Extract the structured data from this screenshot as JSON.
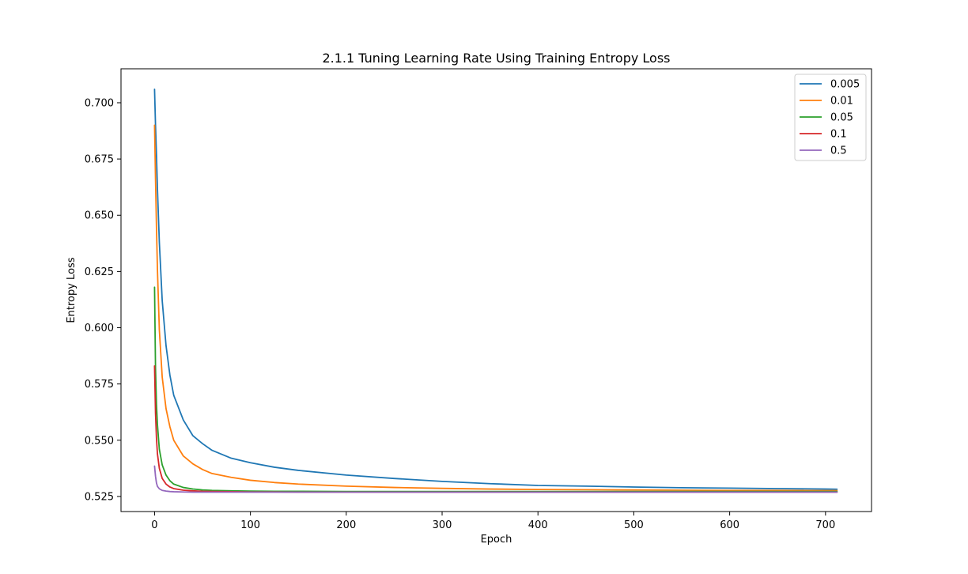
{
  "chart_data": {
    "type": "line",
    "title": "2.1.1 Tuning Learning Rate Using Training Entropy Loss",
    "xlabel": "Epoch",
    "ylabel": "Entropy Loss",
    "xlim": [
      -35,
      748
    ],
    "ylim": [
      0.5183,
      0.7151
    ],
    "xticks": [
      0,
      100,
      200,
      300,
      400,
      500,
      600,
      700
    ],
    "yticks": [
      0.525,
      0.55,
      0.575,
      0.6,
      0.625,
      0.65,
      0.675,
      0.7
    ],
    "ytick_labels": [
      "0.525",
      "0.550",
      "0.575",
      "0.600",
      "0.625",
      "0.650",
      "0.675",
      "0.700"
    ],
    "legend_position": "top-right",
    "grid": false,
    "x": [
      0,
      1,
      2,
      3,
      5,
      8,
      12,
      16,
      20,
      30,
      40,
      50,
      60,
      80,
      100,
      125,
      150,
      200,
      250,
      300,
      350,
      400,
      450,
      500,
      550,
      600,
      650,
      700,
      712
    ],
    "series": [
      {
        "name": "0.005",
        "color": "#1f77b4",
        "values": [
          0.706,
          0.69,
          0.677,
          0.662,
          0.638,
          0.612,
          0.592,
          0.579,
          0.57,
          0.559,
          0.552,
          0.5485,
          0.5455,
          0.542,
          0.54,
          0.538,
          0.5366,
          0.5345,
          0.533,
          0.5317,
          0.5307,
          0.5299,
          0.5296,
          0.5292,
          0.5289,
          0.5287,
          0.5285,
          0.5283,
          0.5282
        ]
      },
      {
        "name": "0.01",
        "color": "#ff7f0e",
        "values": [
          0.69,
          0.666,
          0.645,
          0.626,
          0.599,
          0.578,
          0.564,
          0.556,
          0.55,
          0.543,
          0.5395,
          0.537,
          0.5352,
          0.5335,
          0.5322,
          0.5312,
          0.5305,
          0.5296,
          0.529,
          0.5286,
          0.5283,
          0.5281,
          0.528,
          0.5279,
          0.5278,
          0.5277,
          0.5277,
          0.5276,
          0.5276
        ]
      },
      {
        "name": "0.05",
        "color": "#2ca02c",
        "values": [
          0.618,
          0.582,
          0.566,
          0.557,
          0.546,
          0.539,
          0.5345,
          0.532,
          0.5305,
          0.529,
          0.5283,
          0.5279,
          0.5277,
          0.5275,
          0.5274,
          0.5273,
          0.5273,
          0.5272,
          0.5272,
          0.5272,
          0.5272,
          0.5272,
          0.5272,
          0.5272,
          0.5272,
          0.5272,
          0.5272,
          0.5272,
          0.5272
        ]
      },
      {
        "name": "0.1",
        "color": "#d62728",
        "values": [
          0.583,
          0.562,
          0.551,
          0.544,
          0.5375,
          0.533,
          0.5305,
          0.5292,
          0.5285,
          0.5278,
          0.5275,
          0.5273,
          0.5272,
          0.5271,
          0.527,
          0.527,
          0.5269,
          0.5269,
          0.5269,
          0.5269,
          0.5269,
          0.5269,
          0.5269,
          0.5269,
          0.5269,
          0.5269,
          0.5269,
          0.5269,
          0.5269
        ]
      },
      {
        "name": "0.5",
        "color": "#9467bd",
        "values": [
          0.5385,
          0.534,
          0.531,
          0.5295,
          0.5284,
          0.5277,
          0.5274,
          0.5272,
          0.5271,
          0.527,
          0.5269,
          0.5269,
          0.5269,
          0.5269,
          0.5269,
          0.5269,
          0.5269,
          0.5269,
          0.5269,
          0.5269,
          0.5269,
          0.5269,
          0.5269,
          0.5269,
          0.5269,
          0.5269,
          0.5269,
          0.5269,
          0.5269
        ]
      }
    ]
  }
}
